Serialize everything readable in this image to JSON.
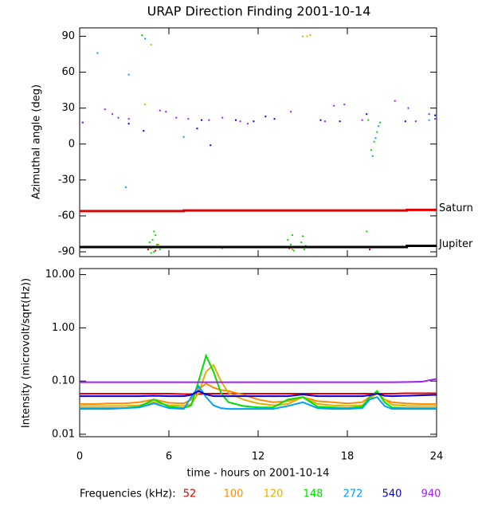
{
  "chart_data": [
    {
      "type": "scatter",
      "title": "URAP Direction Finding  2001-10-14",
      "ylabel": "Azimuthal angle (deg)",
      "xlim": [
        0,
        24
      ],
      "xticks": [
        0,
        6,
        12,
        18,
        24
      ],
      "ylim": [
        -94,
        97
      ],
      "yticks": [
        -90,
        -60,
        -30,
        0,
        30,
        60,
        90
      ],
      "series": [
        {
          "color": "#e00000",
          "x": [
            4.6,
            5.1,
            14.1,
            19.5
          ],
          "values": [
            -88,
            -89,
            -87,
            -88
          ]
        },
        {
          "color": "#ff8c00",
          "x": [
            4.8,
            14.3,
            19.6,
            5.3
          ],
          "values": [
            -87,
            -88,
            -86,
            -84
          ]
        },
        {
          "color": "#e0b000",
          "x": [
            4.4,
            4.8,
            15.0,
            15.3,
            15.5
          ],
          "values": [
            33,
            83,
            90,
            90,
            91
          ]
        },
        {
          "color": "#00e000",
          "x": [
            4.2,
            19.6,
            19.8,
            20.0,
            20.2,
            19.4,
            4.5,
            4.7,
            4.9,
            5.0,
            5.1,
            5.2,
            5.4,
            5.0,
            4.8,
            9.6,
            14.0,
            14.1,
            14.3,
            14.4,
            14.2,
            14.9,
            15.0,
            15.1,
            15.2,
            19.3
          ],
          "values": [
            91,
            -5,
            2,
            10,
            18,
            20,
            -86,
            -82,
            -80,
            -90,
            -76,
            -84,
            -88,
            -73,
            -91,
            -87,
            -80,
            -86,
            -76,
            -89,
            -84,
            -82,
            -77,
            -88,
            -85,
            -73
          ]
        },
        {
          "color": "#00a0ff",
          "x": [
            1.2,
            3.3,
            4.4,
            3.1,
            7.0,
            19.7,
            19.9,
            20.1,
            23.5
          ],
          "values": [
            76,
            58,
            88,
            -36,
            6,
            -10,
            5,
            15,
            20
          ]
        },
        {
          "color": "#0000e0",
          "x": [
            0.2,
            3.3,
            4.3,
            7.9,
            8.2,
            8.8,
            10.5,
            11.7,
            12.5,
            13.1,
            16.2,
            17.5,
            19.3,
            21.9,
            23.9
          ],
          "values": [
            18,
            17,
            11,
            13,
            20,
            -1,
            20,
            19,
            23,
            21,
            20,
            19,
            25,
            19,
            24
          ]
        },
        {
          "color": "#a020f0",
          "x": [
            0.2,
            1.7,
            2.2,
            2.6,
            3.3,
            5.4,
            5.8,
            6.5,
            7.3,
            8.7,
            9.6,
            10.8,
            11.3,
            14.2,
            16.5,
            17.1,
            17.8,
            19.0,
            21.2,
            22.1,
            22.6,
            23.5,
            23.9
          ],
          "values": [
            18,
            29,
            25,
            22,
            21,
            28,
            27,
            22,
            21,
            20,
            22,
            19,
            17,
            27,
            19,
            32,
            33,
            20,
            36,
            30,
            19,
            25,
            21
          ]
        }
      ],
      "lines": [
        {
          "name": "Saturn",
          "color": "#e00000",
          "x": [
            0,
            7,
            7,
            22,
            22,
            24
          ],
          "values": [
            -56,
            -56,
            -55.5,
            -55.5,
            -55,
            -55
          ]
        },
        {
          "name": "Jupiter",
          "color": "#000000",
          "x": [
            0,
            22,
            22,
            24
          ],
          "values": [
            -86,
            -86,
            -85,
            -85
          ]
        }
      ]
    },
    {
      "type": "line",
      "ylabel": "Intensity (microvolt/sqrt(Hz))",
      "xlabel": "time - hours on 2001-10-14",
      "legend_title": "Frequencies (kHz):",
      "log_y": true,
      "xlim": [
        0,
        24
      ],
      "xticks": [
        0,
        6,
        12,
        18,
        24
      ],
      "ylim": [
        0.009,
        13
      ],
      "yticks": [
        {
          "value": 0.01,
          "label": "0.01"
        },
        {
          "value": 0.1,
          "label": "0.10"
        },
        {
          "value": 1,
          "label": "1.00"
        },
        {
          "value": 10,
          "label": "10.00"
        }
      ],
      "x": [
        0,
        1,
        2,
        3,
        4,
        5,
        6,
        7,
        7.5,
        8,
        8.5,
        9,
        9.5,
        10,
        11,
        12,
        13,
        14,
        15,
        16,
        17,
        18,
        19,
        19.5,
        20,
        20.5,
        21,
        22,
        23,
        24
      ],
      "series": [
        {
          "name": "52",
          "color": "#e00000",
          "values": [
            0.058,
            0.058,
            0.058,
            0.058,
            0.058,
            0.058,
            0.058,
            0.057,
            0.057,
            0.057,
            0.058,
            0.058,
            0.058,
            0.058,
            0.058,
            0.058,
            0.058,
            0.058,
            0.058,
            0.058,
            0.058,
            0.058,
            0.058,
            0.058,
            0.058,
            0.058,
            0.058,
            0.059,
            0.059,
            0.059
          ]
        },
        {
          "name": "100",
          "color": "#ff8c00",
          "values": [
            0.037,
            0.037,
            0.038,
            0.038,
            0.04,
            0.045,
            0.039,
            0.038,
            0.045,
            0.07,
            0.09,
            0.075,
            0.068,
            0.065,
            0.055,
            0.045,
            0.04,
            0.042,
            0.05,
            0.042,
            0.04,
            0.038,
            0.04,
            0.05,
            0.06,
            0.045,
            0.04,
            0.038,
            0.037,
            0.037
          ]
        },
        {
          "name": "120",
          "color": "#e0b000",
          "values": [
            0.034,
            0.034,
            0.034,
            0.034,
            0.035,
            0.04,
            0.035,
            0.034,
            0.037,
            0.06,
            0.15,
            0.2,
            0.1,
            0.06,
            0.045,
            0.038,
            0.035,
            0.037,
            0.05,
            0.037,
            0.035,
            0.034,
            0.035,
            0.045,
            0.06,
            0.045,
            0.036,
            0.034,
            0.034,
            0.034
          ]
        },
        {
          "name": "148",
          "color": "#00e000",
          "values": [
            0.031,
            0.031,
            0.031,
            0.031,
            0.033,
            0.045,
            0.033,
            0.031,
            0.035,
            0.1,
            0.3,
            0.15,
            0.06,
            0.04,
            0.034,
            0.032,
            0.032,
            0.045,
            0.05,
            0.033,
            0.032,
            0.031,
            0.033,
            0.05,
            0.065,
            0.04,
            0.032,
            0.031,
            0.031,
            0.031
          ]
        },
        {
          "name": "272",
          "color": "#00a0ff",
          "values": [
            0.03,
            0.03,
            0.03,
            0.031,
            0.032,
            0.038,
            0.031,
            0.03,
            0.05,
            0.08,
            0.05,
            0.035,
            0.031,
            0.03,
            0.03,
            0.03,
            0.03,
            0.034,
            0.04,
            0.031,
            0.03,
            0.03,
            0.031,
            0.045,
            0.05,
            0.034,
            0.03,
            0.03,
            0.03,
            0.03
          ]
        },
        {
          "name": "540",
          "color": "#0000e0",
          "values": [
            0.052,
            0.052,
            0.052,
            0.052,
            0.052,
            0.053,
            0.052,
            0.052,
            0.055,
            0.065,
            0.056,
            0.052,
            0.052,
            0.052,
            0.052,
            0.052,
            0.052,
            0.052,
            0.056,
            0.052,
            0.052,
            0.052,
            0.052,
            0.054,
            0.058,
            0.053,
            0.052,
            0.053,
            0.054,
            0.055
          ]
        },
        {
          "name": "940",
          "color": "#a020f0",
          "values": [
            0.095,
            0.095,
            0.095,
            0.095,
            0.095,
            0.095,
            0.095,
            0.095,
            0.095,
            0.095,
            0.095,
            0.095,
            0.095,
            0.095,
            0.095,
            0.095,
            0.095,
            0.095,
            0.095,
            0.095,
            0.095,
            0.095,
            0.095,
            0.095,
            0.095,
            0.095,
            0.095,
            0.096,
            0.097,
            0.11
          ]
        }
      ]
    }
  ]
}
